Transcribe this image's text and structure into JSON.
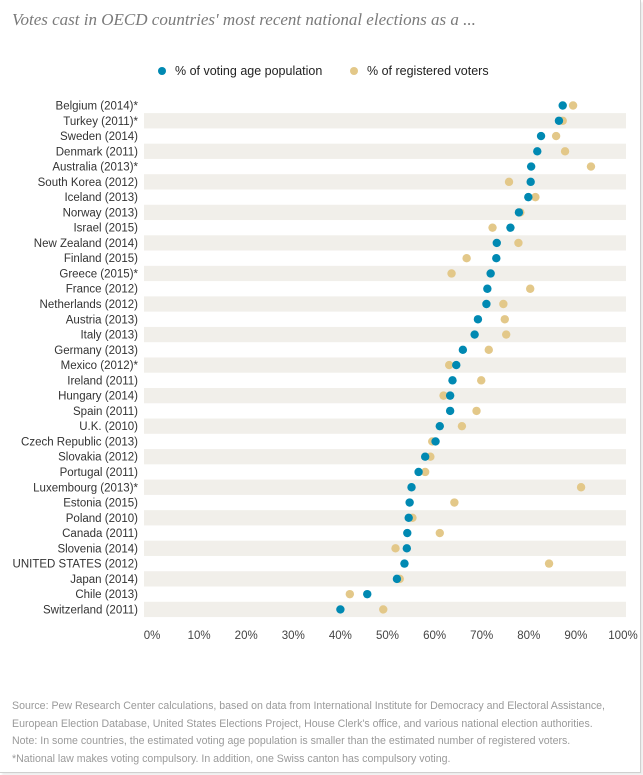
{
  "header": {
    "title": "Votes cast in OECD countries' most recent national elections as a ..."
  },
  "legend": [
    {
      "label": "% of voting age population",
      "color": "#0089b2"
    },
    {
      "label": "% of registered voters",
      "color": "#e3c889"
    }
  ],
  "footer": {
    "source_1": "Source: Pew Research Center calculations, based on data from International Institute for Democracy and Electoral Assistance,",
    "source_2": "European Election Database, United States Elections Project, House Clerk's office, and various national election authorities.",
    "note": "Note: In some countries, the estimated voting age population is smaller than the estimated number of registered voters.",
    "asterisk": "*National law makes voting compulsory. In addition, one Swiss canton has compulsory voting."
  },
  "chart_data": {
    "type": "scatter",
    "orientation": "horizontal-dot-plot",
    "xlim": [
      0,
      100
    ],
    "x_ticks": [
      "0%",
      "10%",
      "20%",
      "30%",
      "40%",
      "50%",
      "60%",
      "70%",
      "80%",
      "90%",
      "100%"
    ],
    "categories": [
      "Belgium (2014)*",
      "Turkey (2011)*",
      "Sweden (2014)",
      "Denmark (2011)",
      "Australia (2013)*",
      "South Korea (2012)",
      "Iceland (2013)",
      "Norway (2013)",
      "Israel (2015)",
      "New Zealand (2014)",
      "Finland (2015)",
      "Greece (2015)*",
      "France (2012)",
      "Netherlands (2012)",
      "Austria (2013)",
      "Italy (2013)",
      "Germany (2013)",
      "Mexico (2012)*",
      "Ireland (2011)",
      "Hungary (2014)",
      "Spain (2011)",
      "U.K. (2010)",
      "Czech Republic (2013)",
      "Slovakia (2012)",
      "Portugal (2011)",
      "Luxembourg (2013)*",
      "Estonia (2015)",
      "Poland (2010)",
      "Canada (2011)",
      "Slovenia (2014)",
      "UNITED STATES (2012)",
      "Japan (2014)",
      "Chile (2013)",
      "Switzerland (2011)"
    ],
    "series": [
      {
        "name": "% of voting age population",
        "color": "#0089b2",
        "values": [
          87.2,
          86.4,
          82.6,
          81.8,
          80.5,
          80.4,
          79.9,
          77.9,
          76.1,
          73.2,
          73.1,
          71.9,
          71.2,
          71.0,
          69.2,
          68.5,
          66.0,
          64.6,
          63.8,
          63.3,
          63.3,
          61.1,
          60.2,
          58.0,
          56.6,
          55.1,
          54.7,
          54.5,
          54.2,
          54.1,
          53.6,
          52.0,
          45.7,
          40.0
        ]
      },
      {
        "name": "% of registered voters",
        "color": "#e3c889",
        "values": [
          89.4,
          87.2,
          85.8,
          87.7,
          93.2,
          75.8,
          81.4,
          78.2,
          72.3,
          77.8,
          66.8,
          63.6,
          80.3,
          74.6,
          74.9,
          75.2,
          71.5,
          63.1,
          69.9,
          61.9,
          68.9,
          65.8,
          59.5,
          59.1,
          58.0,
          91.1,
          64.2,
          55.3,
          61.1,
          51.7,
          84.3,
          52.6,
          42.0,
          49.1
        ]
      }
    ]
  }
}
